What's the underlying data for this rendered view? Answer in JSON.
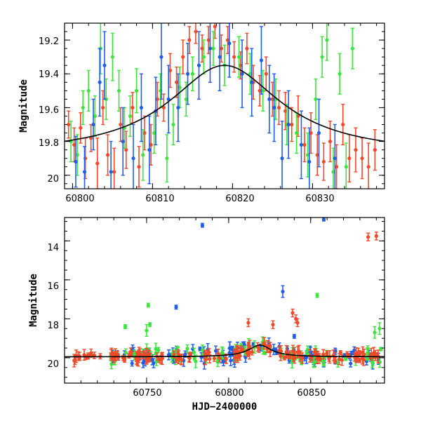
{
  "colors": {
    "blue": "#1f5fe6",
    "green": "#3ee33e",
    "red": "#f04a2a",
    "model": "#000000"
  },
  "chart_data": [
    {
      "type": "scatter",
      "panel": "top",
      "xlabel": "",
      "ylabel": "Magnitude",
      "xlim": [
        60799,
        60839
      ],
      "ylim": [
        20.08,
        19.1
      ],
      "y_inverted": true,
      "xticks": [
        "60800",
        "60810",
        "60820",
        "60830"
      ],
      "yticks": [
        "19.2",
        "19.4",
        "19.6",
        "19.8",
        "20"
      ],
      "model_curve": {
        "form": "lorentzian",
        "peak_x": 60819,
        "peak_mag": 19.35,
        "baseline_mag": 19.88,
        "width": 8.5
      },
      "series_note": "dense photometry with error bars; values approximate",
      "series": [
        {
          "color_key": "red",
          "points": [
            [
              60799.5,
              19.7,
              0.08
            ],
            [
              60800.2,
              19.82,
              0.1
            ],
            [
              60801,
              19.72,
              0.09
            ],
            [
              60801.6,
              19.9,
              0.12
            ],
            [
              60802.3,
              19.78,
              0.08
            ],
            [
              60803.1,
              19.93,
              0.15
            ],
            [
              60803.8,
              19.6,
              0.1
            ],
            [
              60804.4,
              19.88,
              0.12
            ],
            [
              60805.2,
              19.98,
              0.14
            ],
            [
              60806,
              19.7,
              0.1
            ],
            [
              60806.7,
              19.85,
              0.11
            ],
            [
              60807.5,
              19.6,
              0.09
            ],
            [
              60808.3,
              19.95,
              0.12
            ],
            [
              60809,
              19.75,
              0.1
            ],
            [
              60809.8,
              19.82,
              0.12
            ],
            [
              60810.6,
              19.55,
              0.1
            ],
            [
              60811.4,
              19.6,
              0.08
            ],
            [
              60812.2,
              19.38,
              0.1
            ],
            [
              60813,
              19.45,
              0.09
            ],
            [
              60813.8,
              19.3,
              0.1
            ],
            [
              60814.6,
              19.2,
              0.08
            ],
            [
              60815.4,
              19.15,
              0.07
            ],
            [
              60816.2,
              19.25,
              0.08
            ],
            [
              60817,
              19.2,
              0.08
            ],
            [
              60817.8,
              19.12,
              0.07
            ],
            [
              60818.6,
              19.25,
              0.08
            ],
            [
              60819.4,
              19.2,
              0.08
            ],
            [
              60820.2,
              19.3,
              0.09
            ],
            [
              60821,
              19.35,
              0.08
            ],
            [
              60821.8,
              19.25,
              0.09
            ],
            [
              60822.6,
              19.45,
              0.1
            ],
            [
              60823.4,
              19.5,
              0.09
            ],
            [
              60824.2,
              19.4,
              0.1
            ],
            [
              60825,
              19.55,
              0.1
            ],
            [
              60825.8,
              19.6,
              0.1
            ],
            [
              60826.6,
              19.62,
              0.11
            ],
            [
              60827.4,
              19.7,
              0.1
            ],
            [
              60828.2,
              19.65,
              0.12
            ],
            [
              60829,
              19.82,
              0.1
            ],
            [
              60829.8,
              19.75,
              0.12
            ],
            [
              60830.6,
              19.88,
              0.12
            ],
            [
              60831.4,
              19.92,
              0.11
            ],
            [
              60832.2,
              19.8,
              0.12
            ],
            [
              60833,
              19.95,
              0.13
            ],
            [
              60833.8,
              19.7,
              0.12
            ],
            [
              60834.6,
              19.9,
              0.14
            ],
            [
              60835.4,
              19.85,
              0.13
            ],
            [
              60836.2,
              19.9,
              0.12
            ],
            [
              60837,
              19.95,
              0.14
            ],
            [
              60837.8,
              19.85,
              0.12
            ]
          ]
        },
        {
          "color_key": "green",
          "points": [
            [
              60799.8,
              19.8,
              0.12
            ],
            [
              60800.6,
              19.88,
              0.12
            ],
            [
              60801.3,
              19.6,
              0.1
            ],
            [
              60802,
              19.5,
              0.12
            ],
            [
              60802.8,
              19.65,
              0.12
            ],
            [
              60803.5,
              19.25,
              0.15
            ],
            [
              60804.2,
              19.55,
              0.12
            ],
            [
              60805,
              19.3,
              0.14
            ],
            [
              60805.8,
              19.5,
              0.12
            ],
            [
              60806.5,
              19.72,
              0.12
            ],
            [
              60807.2,
              19.65,
              0.12
            ],
            [
              60808,
              19.5,
              0.13
            ],
            [
              60808.8,
              19.88,
              0.15
            ],
            [
              60810.2,
              19.75,
              0.12
            ],
            [
              60811,
              19.5,
              0.1
            ],
            [
              60811.8,
              19.9,
              0.14
            ],
            [
              60812.6,
              19.7,
              0.12
            ],
            [
              60813.4,
              19.48,
              0.12
            ],
            [
              60814.2,
              19.55,
              0.1
            ],
            [
              60815,
              19.4,
              0.1
            ],
            [
              60816.4,
              19.3,
              0.1
            ],
            [
              60817.6,
              19.25,
              0.1
            ],
            [
              60819,
              19.35,
              0.12
            ],
            [
              60820.8,
              19.3,
              0.12
            ],
            [
              60822.2,
              19.4,
              0.12
            ],
            [
              60823.8,
              19.5,
              0.12
            ],
            [
              60825.4,
              19.55,
              0.12
            ],
            [
              60826.8,
              19.7,
              0.12
            ],
            [
              60828,
              19.75,
              0.12
            ],
            [
              60829.4,
              19.88,
              0.13
            ],
            [
              60830.4,
              19.55,
              0.12
            ],
            [
              60831.2,
              19.3,
              0.12
            ],
            [
              60831.8,
              19.2,
              0.12
            ],
            [
              60832.6,
              19.98,
              0.14
            ],
            [
              60833.4,
              19.4,
              0.12
            ],
            [
              60834.2,
              19.95,
              0.14
            ],
            [
              60835,
              19.25,
              0.12
            ]
          ]
        },
        {
          "color_key": "blue",
          "points": [
            [
              60800.4,
              19.92,
              0.15
            ],
            [
              60801.5,
              19.98,
              0.15
            ],
            [
              60802.6,
              19.7,
              0.15
            ],
            [
              60803.4,
              19.45,
              0.2
            ],
            [
              60804,
              19.35,
              0.2
            ],
            [
              60804.8,
              19.98,
              0.18
            ],
            [
              60806.3,
              19.8,
              0.2
            ],
            [
              60807.6,
              19.9,
              0.2
            ],
            [
              60808.6,
              19.6,
              0.2
            ],
            [
              60809.6,
              19.85,
              0.2
            ],
            [
              60810.4,
              19.62,
              0.2
            ],
            [
              60811.1,
              19.3,
              0.25
            ],
            [
              60812,
              19.55,
              0.2
            ],
            [
              60813.2,
              19.6,
              0.2
            ],
            [
              60814.4,
              19.4,
              0.18
            ],
            [
              60815.8,
              19.35,
              0.2
            ],
            [
              60817.2,
              19.25,
              0.2
            ],
            [
              60818.4,
              19.3,
              0.2
            ],
            [
              60819.6,
              19.22,
              0.2
            ],
            [
              60821.2,
              19.4,
              0.2
            ],
            [
              60822.4,
              19.45,
              0.2
            ],
            [
              60823.6,
              19.32,
              0.2
            ],
            [
              60824.6,
              19.55,
              0.2
            ],
            [
              60825.2,
              19.6,
              0.2
            ],
            [
              60826.2,
              19.9,
              0.22
            ],
            [
              60827,
              19.7,
              0.2
            ],
            [
              60828.6,
              19.82,
              0.2
            ],
            [
              60829.6,
              19.92,
              0.2
            ],
            [
              60830.8,
              19.75,
              0.2
            ],
            [
              60832.8,
              19.9,
              0.2
            ]
          ]
        }
      ]
    },
    {
      "type": "scatter",
      "panel": "bottom",
      "xlabel": "HJD−2400000",
      "ylabel": "Magnitude",
      "xlim": [
        60700,
        60895
      ],
      "ylim": [
        21.3,
        12.8
      ],
      "y_inverted": true,
      "xticks": [
        "60750",
        "60800",
        "60850"
      ],
      "yticks": [
        "14",
        "16",
        "18",
        "20"
      ],
      "model_curve": {
        "form": "lorentzian",
        "peak_x": 60819,
        "peak_mag": 19.35,
        "baseline_mag": 19.95,
        "width": 8.5
      },
      "series_note": "dense photometry with error bars; values approximate",
      "outliers": [
        {
          "color_key": "blue",
          "x": 60784,
          "y": 13.2,
          "err": 0.1
        },
        {
          "color_key": "blue",
          "x": 60858,
          "y": 12.9,
          "err": 0.08
        },
        {
          "color_key": "red",
          "x": 60885,
          "y": 13.8,
          "err": 0.2
        },
        {
          "color_key": "red",
          "x": 60890,
          "y": 13.75,
          "err": 0.2
        },
        {
          "color_key": "blue",
          "x": 60768,
          "y": 17.4,
          "err": 0.1
        },
        {
          "color_key": "blue",
          "x": 60833,
          "y": 16.6,
          "err": 0.3
        },
        {
          "color_key": "green",
          "x": 60751,
          "y": 17.3,
          "err": 0.1
        },
        {
          "color_key": "green",
          "x": 60854,
          "y": 16.8,
          "err": 0.1
        },
        {
          "color_key": "green",
          "x": 60737,
          "y": 18.4,
          "err": 0.1
        },
        {
          "color_key": "green",
          "x": 60752,
          "y": 18.3,
          "err": 0.1
        },
        {
          "color_key": "green",
          "x": 60750,
          "y": 18.6,
          "err": 0.3
        },
        {
          "color_key": "red",
          "x": 60839,
          "y": 17.7,
          "err": 0.2
        },
        {
          "color_key": "red",
          "x": 60841,
          "y": 18.0,
          "err": 0.2
        },
        {
          "color_key": "red",
          "x": 60842,
          "y": 18.2,
          "err": 0.2
        },
        {
          "color_key": "red",
          "x": 60827,
          "y": 18.3,
          "err": 0.2
        },
        {
          "color_key": "red",
          "x": 60812,
          "y": 18.2,
          "err": 0.2
        },
        {
          "color_key": "blue",
          "x": 60840,
          "y": 18.9,
          "err": 0.1
        },
        {
          "color_key": "green",
          "x": 60889,
          "y": 18.7,
          "err": 0.3
        },
        {
          "color_key": "green",
          "x": 60892,
          "y": 18.5,
          "err": 0.3
        }
      ]
    }
  ]
}
